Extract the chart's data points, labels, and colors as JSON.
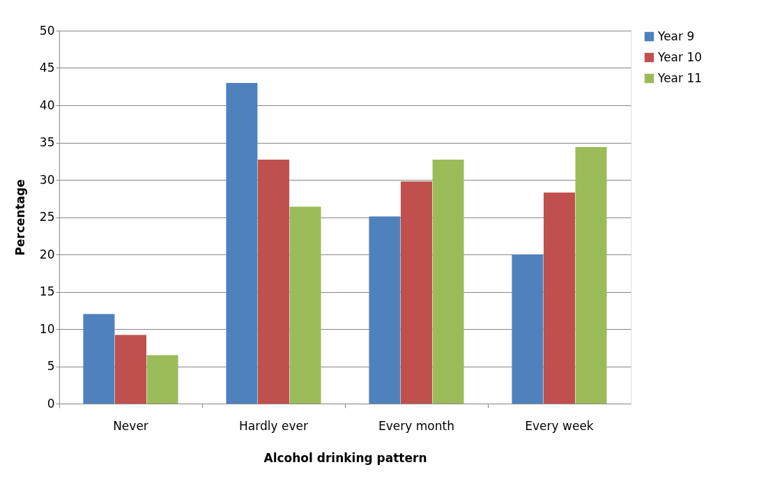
{
  "chart_data": {
    "type": "bar",
    "xlabel": "Alcohol drinking pattern",
    "ylabel": "Percentage",
    "categories": [
      "Never",
      "Hardly ever",
      "Every month",
      "Every week"
    ],
    "series": [
      {
        "name": "Year 9",
        "color": "#4f81bd",
        "values": [
          12,
          43,
          25.1,
          20
        ]
      },
      {
        "name": "Year 10",
        "color": "#c0504d",
        "values": [
          9.2,
          32.7,
          29.8,
          28.3
        ]
      },
      {
        "name": "Year 11",
        "color": "#9bbb59",
        "values": [
          6.5,
          26.4,
          32.7,
          34.4
        ]
      }
    ],
    "ylim": [
      0,
      50
    ],
    "yticks": [
      0,
      5,
      10,
      15,
      20,
      25,
      30,
      35,
      40,
      45,
      50
    ],
    "grid": "y",
    "legend": "right"
  }
}
